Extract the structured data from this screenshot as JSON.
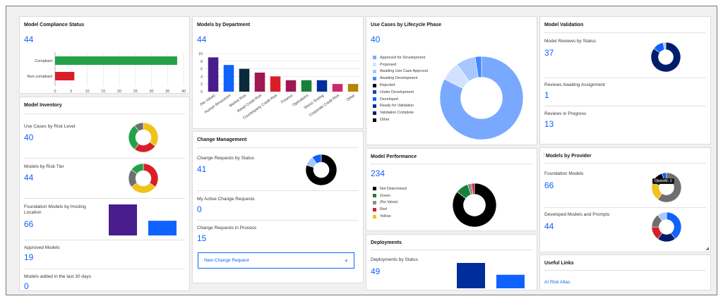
{
  "colors": {
    "accent": "#0f62fe",
    "green": "#24a148",
    "red": "#da1e28",
    "yellow": "#f1c21b",
    "purple": "#491d8b",
    "navy": "#001d6c",
    "black": "#000000",
    "gray": "#6f6f6f",
    "light_blue": "#a6c8ff"
  },
  "compliance": {
    "title": "Model Compliance Status",
    "total": "44",
    "chart_data": {
      "type": "bar",
      "orientation": "horizontal",
      "categories": [
        "Compliant",
        "Non-compliant"
      ],
      "values": [
        38,
        6
      ],
      "colors": [
        "#24a148",
        "#da1e28"
      ],
      "xlim": [
        0,
        40
      ],
      "xticks": [
        "0",
        "5",
        "10",
        "15",
        "20",
        "25",
        "30",
        "35",
        "40"
      ],
      "grid": true
    }
  },
  "inventory": {
    "title": "Model Inventory",
    "risk_level": {
      "label": "Use Cases by Risk Level",
      "value": "40",
      "chart_data": {
        "type": "pie",
        "donut": true,
        "values": [
          35,
          25,
          30,
          10
        ],
        "colors": [
          "#f1c21b",
          "#da1e28",
          "#24a148",
          "#6f6f6f"
        ]
      }
    },
    "risk_tier": {
      "label": "Models by Risk Tier",
      "value": "44",
      "chart_data": {
        "type": "pie",
        "donut": true,
        "values": [
          35,
          30,
          20,
          15
        ],
        "colors": [
          "#da1e28",
          "#f1c21b",
          "#6f6f6f",
          "#24a148"
        ]
      }
    },
    "hosting": {
      "label": "Foundation Models by Hosting Location",
      "value": "66",
      "chart_data": {
        "type": "bar",
        "values": [
          38,
          18
        ],
        "colors": [
          "#491d8b",
          "#0f62fe"
        ]
      }
    },
    "approved": {
      "label": "Approved Models",
      "value": "19"
    },
    "added": {
      "label": "Models added in the last 30 days",
      "value": "0"
    }
  },
  "department": {
    "title": "Models by Department",
    "total": "44",
    "chart_data": {
      "type": "bar",
      "categories": [
        "(No Value)",
        "Human Resources",
        "Market Risk",
        "Retail Credit Risk",
        "Counterparty Credit Risk",
        "Finance",
        "Operations",
        "Stress Testing",
        "Corporate Credit Risk",
        "Other"
      ],
      "values": [
        9,
        7,
        6,
        5,
        4,
        3,
        3,
        3,
        2,
        2
      ],
      "colors": [
        "#491d8b",
        "#0f62fe",
        "#0b2a3c",
        "#9f1853",
        "#da1e28",
        "#9f1853",
        "#198038",
        "#002d9c",
        "#d02670",
        "#b28600"
      ],
      "ylim": [
        0,
        10
      ],
      "yticks": [
        "0",
        "2",
        "4",
        "6",
        "8",
        "10"
      ],
      "grid": true
    }
  },
  "change": {
    "title": "Change Management",
    "by_status": {
      "label": "Change Requests by Status",
      "value": "41",
      "chart_data": {
        "type": "pie",
        "donut": true,
        "values": [
          80,
          10,
          10
        ],
        "colors": [
          "#000000",
          "#a6c8ff",
          "#0f62fe"
        ]
      }
    },
    "my_active": {
      "label": "My Active Change Requests",
      "value": "0"
    },
    "in_process": {
      "label": "Change Requests in Process",
      "value": "15"
    },
    "new_button": {
      "label": "New Change Request",
      "icon": "plus-icon"
    }
  },
  "lifecycle": {
    "title": "Use Cases by Lifecycle Phase",
    "total": "40",
    "chart_data": {
      "type": "pie",
      "donut": true,
      "legend_position": "left",
      "labels": [
        "Approved for Development",
        "Proposed",
        "Awaiting Use Case Approval",
        "Awaiting Development",
        "Rejected",
        "Under Development",
        "Developed",
        "Ready for Validation",
        "Validation Complete",
        "Other"
      ],
      "values": [
        33,
        3,
        3,
        1,
        0,
        0,
        0,
        0,
        0,
        0
      ],
      "colors": [
        "#78a9ff",
        "#d0e2ff",
        "#a6c8ff",
        "#4589ff",
        "#000000",
        "#0043ce",
        "#0f62fe",
        "#002d9c",
        "#001d6c",
        "#000000"
      ]
    }
  },
  "performance": {
    "title": "Model Performance",
    "total": "234",
    "chart_data": {
      "type": "pie",
      "donut": true,
      "legend_position": "left",
      "labels": [
        "Not Determined",
        "Green",
        "(No Value)",
        "Red",
        "Yellow"
      ],
      "values": [
        200,
        22,
        7,
        5,
        0
      ],
      "colors": [
        "#000000",
        "#198038",
        "#8d8d8d",
        "#da1e28",
        "#f1c21b"
      ]
    }
  },
  "deployments": {
    "title": "Deployments",
    "by_status": {
      "label": "Deployments by Status",
      "value": "49",
      "chart_data": {
        "type": "bar",
        "values": [
          30,
          16
        ],
        "colors": [
          "#002d9c",
          "#0f62fe"
        ]
      }
    }
  },
  "validation": {
    "title": "Model Validation",
    "reviews": {
      "label": "Model Reviews by Status",
      "value": "37",
      "chart_data": {
        "type": "pie",
        "donut": true,
        "values": [
          85,
          12,
          3
        ],
        "colors": [
          "#001d6c",
          "#0f62fe",
          "#a6c8ff"
        ]
      }
    },
    "awaiting": {
      "label": "Reviews Awaiting Assignment",
      "value": "1"
    },
    "in_progress": {
      "label": "Reviews in Progress",
      "value": "13"
    }
  },
  "provider": {
    "title": "Models by Provider",
    "foundation": {
      "label": "Foundation Models",
      "value": "66",
      "tooltip": "OpenAI: 2",
      "chart_data": {
        "type": "pie",
        "donut": true,
        "values": [
          60,
          20,
          15,
          5
        ],
        "colors": [
          "#6f6f6f",
          "#f1c21b",
          "#000000",
          "#0f62fe"
        ]
      }
    },
    "developed": {
      "label": "Developed Models and Prompts",
      "value": "44",
      "chart_data": {
        "type": "pie",
        "donut": true,
        "values": [
          40,
          20,
          15,
          15,
          10
        ],
        "colors": [
          "#0f62fe",
          "#001d6c",
          "#da1e28",
          "#6f6f6f",
          "#a6c8ff"
        ]
      }
    }
  },
  "useful_links": {
    "title": "Useful Links",
    "items": [
      "AI Risk Atlas"
    ]
  }
}
